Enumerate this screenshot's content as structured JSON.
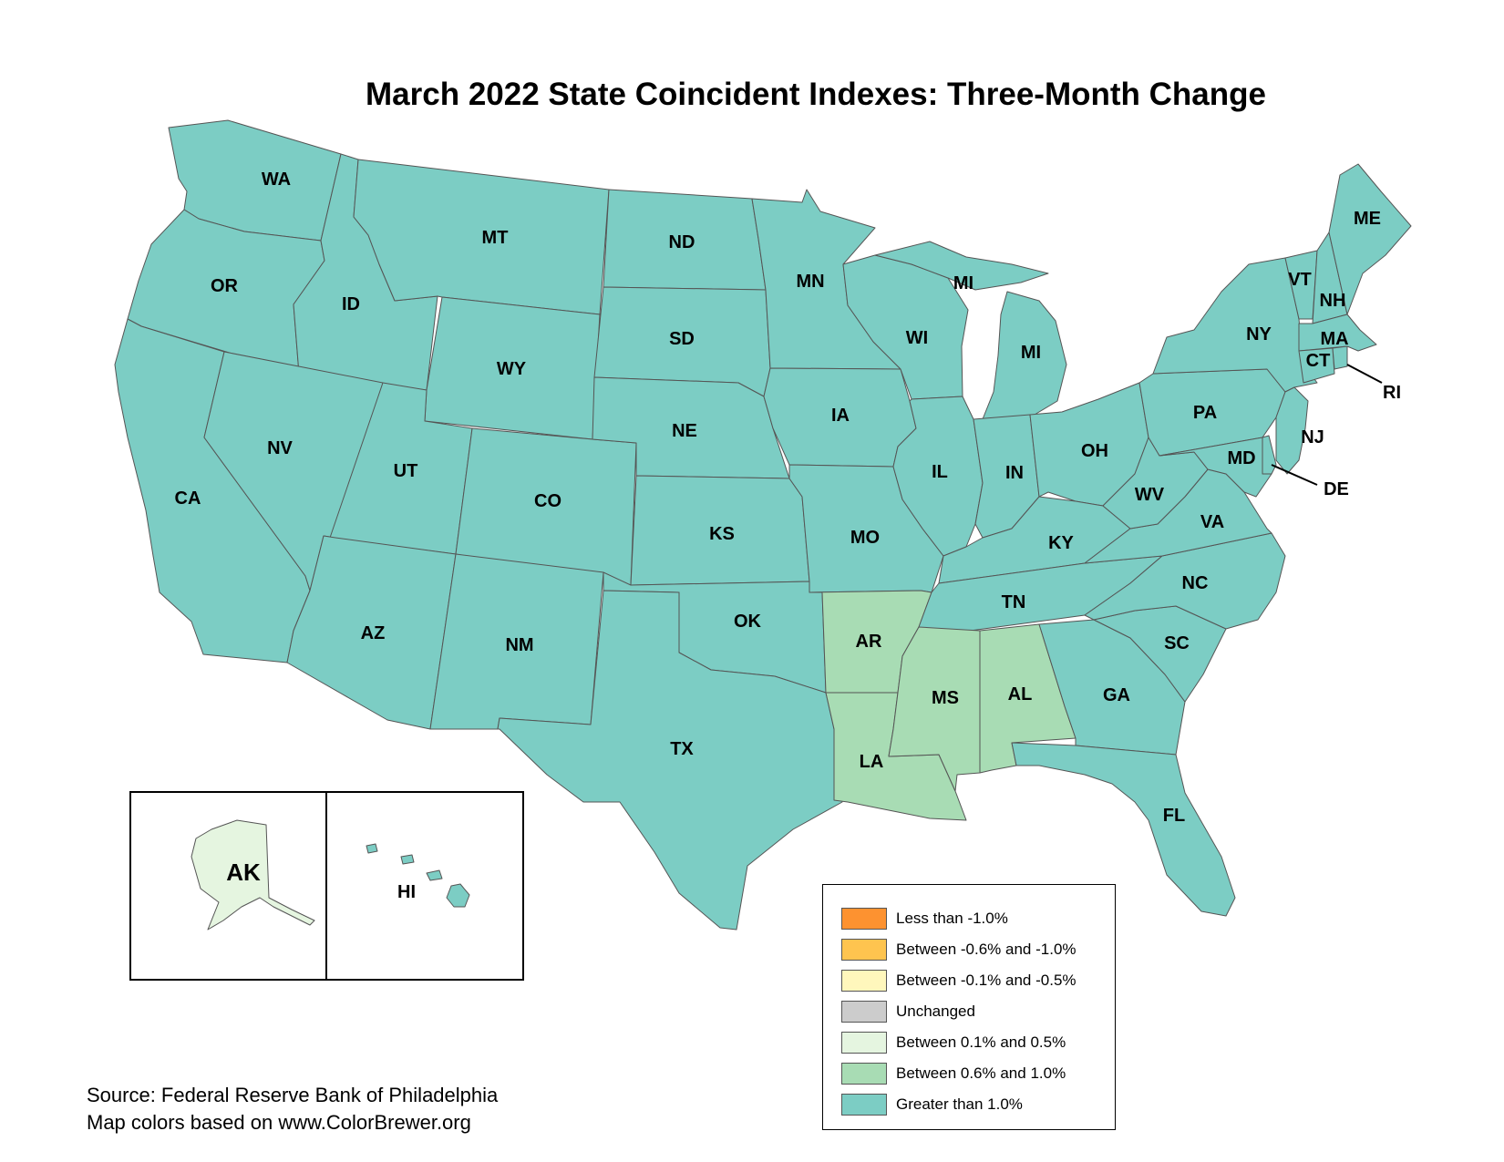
{
  "title": "March 2022 State Coincident Indexes: Three-Month Change",
  "colors": {
    "less_than_neg1": "#fd9230",
    "neg06_neg10": "#fec44f",
    "neg01_neg05": "#fff7bc",
    "unchanged": "#cccccc",
    "pos01_05": "#e5f5e0",
    "pos06_10": "#a8dcb4",
    "gt1": "#7ccdc4"
  },
  "legend": {
    "items": [
      {
        "label": "Less than -1.0%",
        "color": "#fd9230"
      },
      {
        "label": "Between -0.6% and -1.0%",
        "color": "#fec44f"
      },
      {
        "label": "Between -0.1% and -0.5%",
        "color": "#fff7bc"
      },
      {
        "label": "Unchanged",
        "color": "#cccccc"
      },
      {
        "label": "Between 0.1% and 0.5%",
        "color": "#e5f5e0"
      },
      {
        "label": "Between 0.6% and 1.0%",
        "color": "#a8dcb4"
      },
      {
        "label": "Greater than 1.0%",
        "color": "#7ccdc4"
      }
    ]
  },
  "states": {
    "WA": "Greater than 1.0%",
    "OR": "Greater than 1.0%",
    "CA": "Greater than 1.0%",
    "ID": "Greater than 1.0%",
    "NV": "Greater than 1.0%",
    "MT": "Greater than 1.0%",
    "WY": "Greater than 1.0%",
    "UT": "Greater than 1.0%",
    "AZ": "Greater than 1.0%",
    "CO": "Greater than 1.0%",
    "NM": "Greater than 1.0%",
    "ND": "Greater than 1.0%",
    "SD": "Greater than 1.0%",
    "NE": "Greater than 1.0%",
    "KS": "Greater than 1.0%",
    "OK": "Greater than 1.0%",
    "TX": "Greater than 1.0%",
    "MN": "Greater than 1.0%",
    "IA": "Greater than 1.0%",
    "MO": "Greater than 1.0%",
    "AR": "Between 0.6% and 1.0%",
    "LA": "Between 0.6% and 1.0%",
    "WI": "Greater than 1.0%",
    "IL": "Greater than 1.0%",
    "MI": "Greater than 1.0%",
    "IN": "Greater than 1.0%",
    "OH": "Greater than 1.0%",
    "KY": "Greater than 1.0%",
    "TN": "Greater than 1.0%",
    "MS": "Between 0.6% and 1.0%",
    "AL": "Between 0.6% and 1.0%",
    "GA": "Greater than 1.0%",
    "FL": "Greater than 1.0%",
    "SC": "Greater than 1.0%",
    "NC": "Greater than 1.0%",
    "VA": "Greater than 1.0%",
    "WV": "Greater than 1.0%",
    "PA": "Greater than 1.0%",
    "NY": "Greater than 1.0%",
    "VT": "Greater than 1.0%",
    "NH": "Greater than 1.0%",
    "ME": "Greater than 1.0%",
    "MA": "Greater than 1.0%",
    "CT": "Greater than 1.0%",
    "RI": "Greater than 1.0%",
    "NJ": "Greater than 1.0%",
    "DE": "Greater than 1.0%",
    "MD": "Greater than 1.0%",
    "AK": "Between 0.1% and 0.5%",
    "HI": "Greater than 1.0%"
  },
  "labels": {
    "WA": "WA",
    "OR": "OR",
    "CA": "CA",
    "ID": "ID",
    "NV": "NV",
    "MT": "MT",
    "WY": "WY",
    "UT": "UT",
    "AZ": "AZ",
    "CO": "CO",
    "NM": "NM",
    "ND": "ND",
    "SD": "SD",
    "NE": "NE",
    "KS": "KS",
    "OK": "OK",
    "TX": "TX",
    "MN": "MN",
    "IA": "IA",
    "MO": "MO",
    "AR": "AR",
    "LA": "LA",
    "WI": "WI",
    "IL": "IL",
    "MI_UP": "MI",
    "MI_LP": "MI",
    "IN": "IN",
    "OH": "OH",
    "KY": "KY",
    "TN": "TN",
    "MS": "MS",
    "AL": "AL",
    "GA": "GA",
    "FL": "FL",
    "SC": "SC",
    "NC": "NC",
    "VA": "VA",
    "WV": "WV",
    "PA": "PA",
    "NY": "NY",
    "VT": "VT",
    "NH": "NH",
    "ME": "ME",
    "MA": "MA",
    "CT": "CT",
    "RI": "RI",
    "NJ": "NJ",
    "DE": "DE",
    "MD": "MD",
    "AK": "AK",
    "HI": "HI"
  },
  "source": {
    "line1": "Source: Federal Reserve Bank of Philadelphia",
    "line2": "Map colors based on www.ColorBrewer.org"
  }
}
